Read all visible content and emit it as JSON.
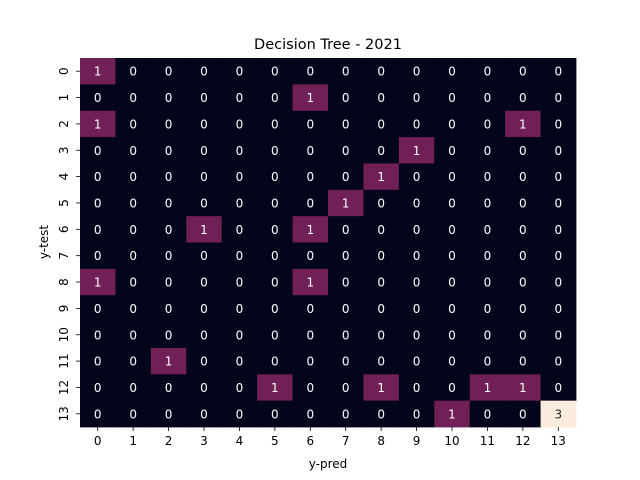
{
  "chart_data": {
    "type": "heatmap",
    "title": "Decision Tree - 2021",
    "xlabel": "y-pred",
    "ylabel": "y-test",
    "x_categories": [
      "0",
      "1",
      "2",
      "3",
      "4",
      "5",
      "6",
      "7",
      "8",
      "9",
      "10",
      "11",
      "12",
      "13"
    ],
    "y_categories": [
      "0",
      "1",
      "2",
      "3",
      "4",
      "5",
      "6",
      "7",
      "8",
      "9",
      "10",
      "11",
      "12",
      "13"
    ],
    "values": [
      [
        1,
        0,
        0,
        0,
        0,
        0,
        0,
        0,
        0,
        0,
        0,
        0,
        0,
        0
      ],
      [
        0,
        0,
        0,
        0,
        0,
        0,
        1,
        0,
        0,
        0,
        0,
        0,
        0,
        0
      ],
      [
        1,
        0,
        0,
        0,
        0,
        0,
        0,
        0,
        0,
        0,
        0,
        0,
        1,
        0
      ],
      [
        0,
        0,
        0,
        0,
        0,
        0,
        0,
        0,
        0,
        1,
        0,
        0,
        0,
        0
      ],
      [
        0,
        0,
        0,
        0,
        0,
        0,
        0,
        0,
        1,
        0,
        0,
        0,
        0,
        0
      ],
      [
        0,
        0,
        0,
        0,
        0,
        0,
        0,
        1,
        0,
        0,
        0,
        0,
        0,
        0
      ],
      [
        0,
        0,
        0,
        1,
        0,
        0,
        1,
        0,
        0,
        0,
        0,
        0,
        0,
        0
      ],
      [
        0,
        0,
        0,
        0,
        0,
        0,
        0,
        0,
        0,
        0,
        0,
        0,
        0,
        0
      ],
      [
        1,
        0,
        0,
        0,
        0,
        0,
        1,
        0,
        0,
        0,
        0,
        0,
        0,
        0
      ],
      [
        0,
        0,
        0,
        0,
        0,
        0,
        0,
        0,
        0,
        0,
        0,
        0,
        0,
        0
      ],
      [
        0,
        0,
        0,
        0,
        0,
        0,
        0,
        0,
        0,
        0,
        0,
        0,
        0,
        0
      ],
      [
        0,
        0,
        1,
        0,
        0,
        0,
        0,
        0,
        0,
        0,
        0,
        0,
        0,
        0
      ],
      [
        0,
        0,
        0,
        0,
        0,
        1,
        0,
        0,
        1,
        0,
        0,
        1,
        1,
        0
      ],
      [
        0,
        0,
        0,
        0,
        0,
        0,
        0,
        0,
        0,
        0,
        1,
        0,
        0,
        3
      ]
    ],
    "colormap": "rocket",
    "color_scale": {
      "0": "#03051a",
      "1": "#701f57",
      "3": "#faebdd"
    },
    "vmin": 0,
    "vmax": 3,
    "annotations": true,
    "grid": false,
    "legend": "none"
  }
}
